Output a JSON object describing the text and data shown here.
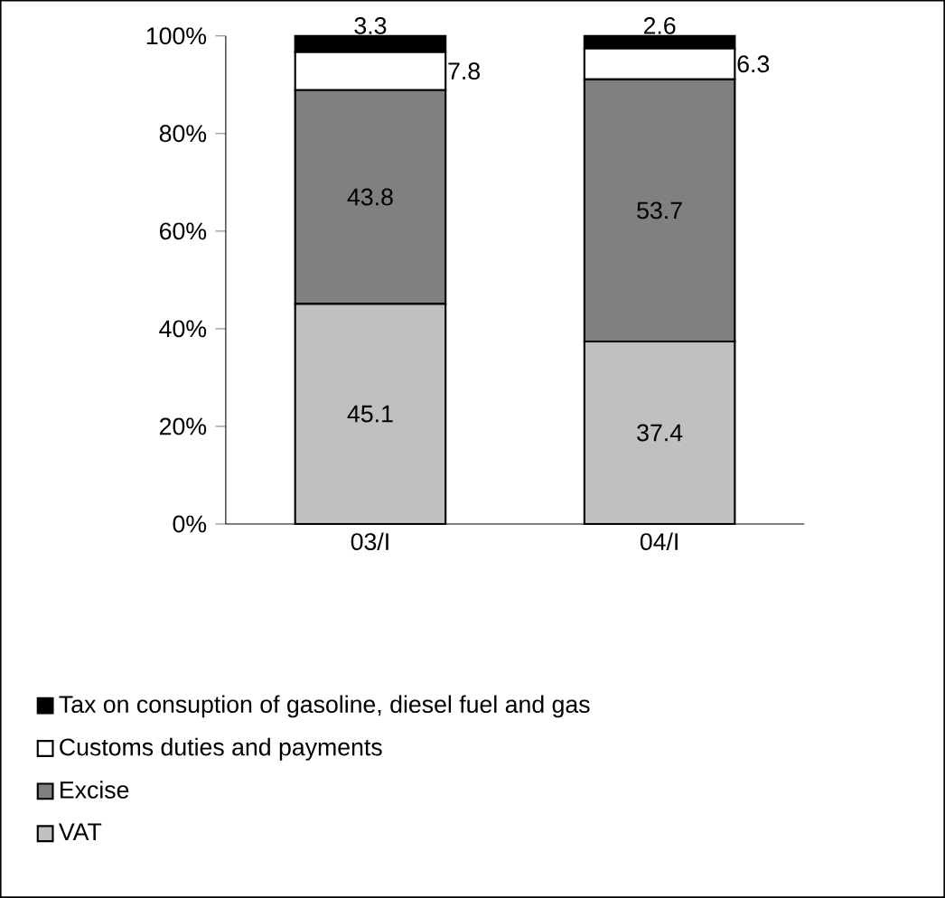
{
  "chart_data": {
    "type": "bar",
    "stacked": true,
    "categories": [
      "03/I",
      "04/I"
    ],
    "series": [
      {
        "name": "VAT",
        "color": "#c0c0c0",
        "values": [
          45.1,
          37.4
        ]
      },
      {
        "name": "Excise",
        "color": "#808080",
        "values": [
          43.8,
          53.7
        ]
      },
      {
        "name": "Customs duties and payments",
        "color": "#ffffff",
        "values": [
          7.8,
          6.3
        ]
      },
      {
        "name": "Tax on consuption of gasoline, diesel fuel and gas",
        "color": "#000000",
        "values": [
          3.3,
          2.6
        ]
      }
    ],
    "ylim": [
      0,
      100
    ],
    "yticks": [
      {
        "value": 0,
        "label": "0%"
      },
      {
        "value": 20,
        "label": "20%"
      },
      {
        "value": 40,
        "label": "40%"
      },
      {
        "value": 60,
        "label": "60%"
      },
      {
        "value": 80,
        "label": "80%"
      },
      {
        "value": 100,
        "label": "100%"
      }
    ],
    "data_labels": true,
    "legend": "bottom",
    "grid": false
  }
}
